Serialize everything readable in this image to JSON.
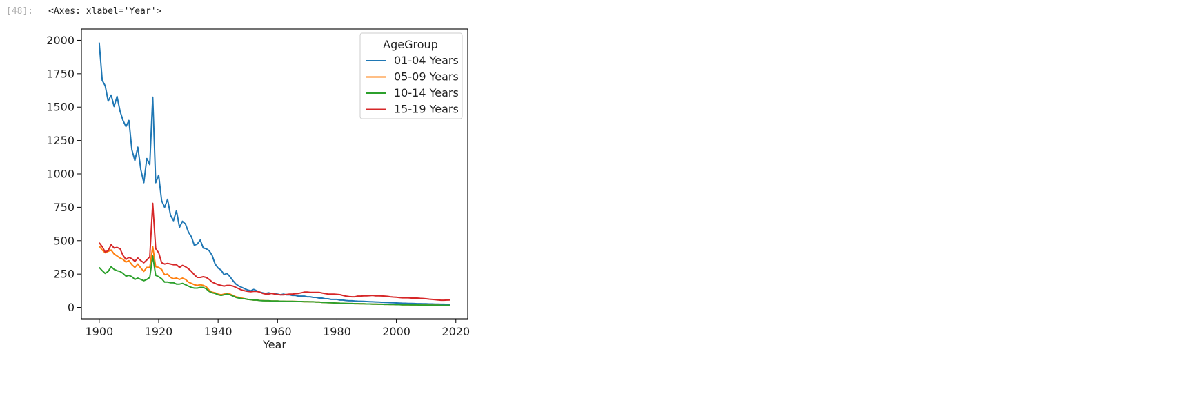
{
  "cell": {
    "prompt": "[48]:",
    "output_text": "<Axes: xlabel='Year'>"
  },
  "chart_data": {
    "type": "line",
    "title": "",
    "xlabel": "Year",
    "ylabel": "",
    "xlim": [
      1894,
      2024
    ],
    "ylim": [
      -85,
      2085
    ],
    "xticks": [
      1900,
      1920,
      1940,
      1960,
      1980,
      2000,
      2020
    ],
    "yticks": [
      0,
      250,
      500,
      750,
      1000,
      1250,
      1500,
      1750,
      2000
    ],
    "legend": {
      "title": "AgeGroup",
      "placement": "upper right"
    },
    "x": [
      1900,
      1901,
      1902,
      1903,
      1904,
      1905,
      1906,
      1907,
      1908,
      1909,
      1910,
      1911,
      1912,
      1913,
      1914,
      1915,
      1916,
      1917,
      1918,
      1919,
      1920,
      1921,
      1922,
      1923,
      1924,
      1925,
      1926,
      1927,
      1928,
      1929,
      1930,
      1931,
      1932,
      1933,
      1934,
      1935,
      1936,
      1937,
      1938,
      1939,
      1940,
      1941,
      1942,
      1943,
      1944,
      1945,
      1946,
      1947,
      1948,
      1949,
      1950,
      1951,
      1952,
      1953,
      1954,
      1955,
      1956,
      1957,
      1958,
      1959,
      1960,
      1961,
      1962,
      1963,
      1964,
      1965,
      1966,
      1967,
      1968,
      1969,
      1970,
      1971,
      1972,
      1973,
      1974,
      1975,
      1976,
      1977,
      1978,
      1979,
      1980,
      1981,
      1982,
      1983,
      1984,
      1985,
      1986,
      1987,
      1988,
      1989,
      1990,
      1991,
      1992,
      1993,
      1994,
      1995,
      1996,
      1997,
      1998,
      1999,
      2000,
      2001,
      2002,
      2003,
      2004,
      2005,
      2006,
      2007,
      2008,
      2009,
      2010,
      2011,
      2012,
      2013,
      2014,
      2015,
      2016,
      2017,
      2018
    ],
    "series": [
      {
        "name": "01-04 Years",
        "color": "#1f77b4",
        "values": [
          1983,
          1700,
          1660,
          1545,
          1590,
          1505,
          1580,
          1470,
          1400,
          1355,
          1400,
          1180,
          1100,
          1200,
          1030,
          935,
          1115,
          1070,
          1575,
          935,
          990,
          800,
          750,
          810,
          690,
          650,
          725,
          600,
          645,
          625,
          565,
          530,
          465,
          475,
          505,
          445,
          440,
          425,
          390,
          325,
          295,
          280,
          245,
          255,
          230,
          200,
          175,
          160,
          150,
          140,
          130,
          125,
          135,
          125,
          115,
          110,
          105,
          110,
          105,
          105,
          100,
          95,
          100,
          95,
          95,
          90,
          90,
          85,
          85,
          85,
          80,
          80,
          75,
          75,
          70,
          70,
          65,
          65,
          60,
          60,
          60,
          55,
          55,
          52,
          50,
          50,
          48,
          47,
          46,
          45,
          44,
          43,
          42,
          41,
          40,
          39,
          38,
          37,
          36,
          35,
          34,
          33,
          32,
          31,
          30,
          30,
          29,
          28,
          28,
          27,
          27,
          26,
          26,
          25,
          25,
          24,
          24,
          23,
          23
        ]
      },
      {
        "name": "05-09 Years",
        "color": "#ff7f0e",
        "values": [
          460,
          430,
          410,
          420,
          430,
          400,
          385,
          370,
          360,
          340,
          350,
          320,
          300,
          325,
          295,
          270,
          300,
          300,
          455,
          305,
          300,
          285,
          245,
          250,
          225,
          215,
          220,
          210,
          220,
          210,
          190,
          180,
          170,
          165,
          170,
          165,
          155,
          130,
          115,
          110,
          100,
          95,
          100,
          105,
          100,
          90,
          80,
          75,
          70,
          65,
          60,
          58,
          55,
          55,
          52,
          52,
          50,
          50,
          48,
          48,
          48,
          46,
          46,
          45,
          45,
          45,
          45,
          44,
          44,
          43,
          43,
          42,
          42,
          40,
          40,
          38,
          37,
          36,
          35,
          34,
          33,
          32,
          31,
          30,
          29,
          29,
          28,
          28,
          27,
          27,
          26,
          26,
          25,
          25,
          24,
          24,
          23,
          23,
          22,
          22,
          21,
          21,
          20,
          20,
          20,
          19,
          19,
          19,
          18,
          18,
          18,
          17,
          17,
          17,
          17,
          16,
          16,
          16,
          16
        ]
      },
      {
        "name": "10-14 Years",
        "color": "#2ca02c",
        "values": [
          300,
          275,
          255,
          270,
          305,
          285,
          275,
          270,
          255,
          235,
          240,
          230,
          210,
          220,
          210,
          200,
          210,
          225,
          385,
          240,
          230,
          215,
          190,
          190,
          185,
          185,
          175,
          175,
          180,
          170,
          160,
          150,
          145,
          145,
          150,
          150,
          140,
          120,
          110,
          105,
          95,
          90,
          95,
          100,
          95,
          85,
          75,
          70,
          65,
          65,
          60,
          58,
          55,
          55,
          52,
          50,
          50,
          50,
          48,
          48,
          48,
          46,
          46,
          45,
          45,
          45,
          44,
          44,
          44,
          43,
          43,
          42,
          42,
          40,
          40,
          38,
          37,
          36,
          35,
          34,
          33,
          32,
          31,
          30,
          29,
          29,
          28,
          28,
          27,
          27,
          26,
          26,
          25,
          25,
          24,
          24,
          23,
          23,
          22,
          22,
          21,
          21,
          20,
          20,
          20,
          19,
          19,
          19,
          18,
          18,
          18,
          17,
          17,
          17,
          17,
          16,
          16,
          16,
          16
        ]
      },
      {
        "name": "15-19 Years",
        "color": "#d62728",
        "values": [
          485,
          455,
          415,
          425,
          470,
          445,
          450,
          440,
          390,
          360,
          375,
          365,
          345,
          370,
          350,
          335,
          355,
          380,
          780,
          440,
          410,
          335,
          325,
          330,
          325,
          320,
          320,
          300,
          315,
          305,
          290,
          270,
          245,
          225,
          225,
          230,
          225,
          210,
          190,
          180,
          170,
          165,
          160,
          165,
          165,
          160,
          150,
          140,
          130,
          125,
          120,
          118,
          120,
          120,
          115,
          105,
          100,
          100,
          105,
          100,
          97,
          95,
          95,
          97,
          100,
          100,
          103,
          105,
          110,
          115,
          115,
          113,
          113,
          113,
          113,
          108,
          104,
          100,
          100,
          100,
          98,
          96,
          90,
          85,
          82,
          80,
          80,
          85,
          85,
          87,
          87,
          88,
          90,
          87,
          87,
          86,
          85,
          83,
          80,
          78,
          76,
          74,
          72,
          72,
          72,
          70,
          70,
          70,
          68,
          67,
          65,
          62,
          60,
          58,
          56,
          54,
          54,
          55,
          56
        ]
      }
    ]
  }
}
